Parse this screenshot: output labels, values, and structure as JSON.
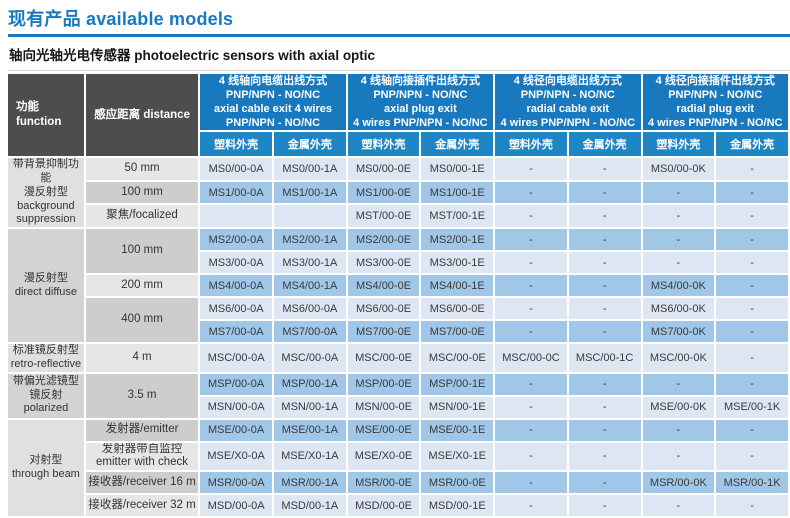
{
  "page": {
    "title": "现有产品 available models",
    "subtitle": "轴向光轴光电传感器 photoelectric sensors with axial  optic"
  },
  "colors": {
    "accent_blue": "#1879BE",
    "subheader_blue": "#1F86C6",
    "corner_gray": "#4D4D4D",
    "row_light": "#DDE6F2",
    "row_dark": "#A0C7E8"
  },
  "table": {
    "corner": {
      "function": [
        "功能",
        "function"
      ],
      "distance": [
        "感应距离 distance"
      ]
    },
    "groups": [
      {
        "lines": [
          "4 线轴向电缆出线方式",
          "PNP/NPN - NO/NC",
          "axial cable exit 4 wires",
          "PNP/NPN - NO/NC"
        ]
      },
      {
        "lines": [
          "4 线轴向接插件出线方式",
          "PNP/NPN - NO/NC",
          "axial plug exit",
          "4 wires PNP/NPN - NO/NC"
        ]
      },
      {
        "lines": [
          "4 线径向电缆出线方式",
          "PNP/NPN - NO/NC",
          "radial cable exit",
          "4 wires PNP/NPN - NO/NC"
        ]
      },
      {
        "lines": [
          "4 线径向接插件出线方式",
          "PNP/NPN - NO/NC",
          "radial plug exit",
          "4 wires PNP/NPN - NO/NC"
        ]
      }
    ],
    "housing_subheaders": [
      "塑料外壳",
      "金属外壳",
      "塑料外壳",
      "金属外壳",
      "塑料外壳",
      "金属外壳",
      "塑料外壳",
      "金属外壳"
    ],
    "sections": [
      {
        "function": {
          "lines": [
            "带背景抑制功能",
            "漫反射型",
            "background",
            "suppression"
          ],
          "shade": "L"
        },
        "rows": [
          {
            "dist": {
              "lines": [
                "50 mm"
              ],
              "span": 1,
              "shade": "L"
            },
            "tone": "L",
            "cells": [
              "MS0/00-0A",
              "MS0/00-1A",
              "MS0/00-0E",
              "MS0/00-1E",
              "-",
              "-",
              "MS0/00-0K",
              "-"
            ]
          },
          {
            "dist": {
              "lines": [
                "100 mm"
              ],
              "span": 1,
              "shade": "D"
            },
            "tone": "D",
            "cells": [
              "MS1/00-0A",
              "MS1/00-1A",
              "MS1/00-0E",
              "MS1/00-1E",
              "-",
              "-",
              "-",
              "-"
            ]
          },
          {
            "dist": {
              "lines": [
                "聚焦/focalized"
              ],
              "span": 1,
              "shade": "L"
            },
            "tone": "L",
            "cells": [
              "",
              "",
              "MST/00-0E",
              "MST/00-1E",
              "-",
              "-",
              "-",
              "-"
            ]
          }
        ]
      },
      {
        "function": {
          "lines": [
            "漫反射型",
            "direct diffuse"
          ],
          "shade": "D"
        },
        "rows": [
          {
            "dist": {
              "lines": [
                "100 mm"
              ],
              "span": 2,
              "shade": "D"
            },
            "tone": "D",
            "cells": [
              "MS2/00-0A",
              "MS2/00-1A",
              "MS2/00-0E",
              "MS2/00-1E",
              "-",
              "-",
              "-",
              "-"
            ]
          },
          {
            "tone": "L",
            "cells": [
              "MS3/00-0A",
              "MS3/00-1A",
              "MS3/00-0E",
              "MS3/00-1E",
              "-",
              "-",
              "-",
              "-"
            ]
          },
          {
            "dist": {
              "lines": [
                "200 mm"
              ],
              "span": 1,
              "shade": "L"
            },
            "tone": "D",
            "cells": [
              "MS4/00-0A",
              "MS4/00-1A",
              "MS4/00-0E",
              "MS4/00-1E",
              "-",
              "-",
              "MS4/00-0K",
              "-"
            ]
          },
          {
            "dist": {
              "lines": [
                "400 mm"
              ],
              "span": 2,
              "shade": "D"
            },
            "tone": "L",
            "cells": [
              "MS6/00-0A",
              "MS6/00-0A",
              "MS6/00-0E",
              "MS6/00-0E",
              "-",
              "-",
              "MS6/00-0K",
              "-"
            ]
          },
          {
            "tone": "D",
            "cells": [
              "MS7/00-0A",
              "MS7/00-0A",
              "MS7/00-0E",
              "MS7/00-0E",
              "-",
              "-",
              "MS7/00-0K",
              "-"
            ]
          }
        ]
      },
      {
        "function": {
          "lines": [
            "标准镜反射型",
            "retro-reflective"
          ],
          "shade": "L"
        },
        "rows": [
          {
            "dist": {
              "lines": [
                "4 m"
              ],
              "span": 1,
              "shade": "L"
            },
            "tone": "L",
            "cells": [
              "MSC/00-0A",
              "MSC/00-0A",
              "MSC/00-0E",
              "MSC/00-0E",
              "MSC/00-0C",
              "MSC/00-1C",
              "MSC/00-0K",
              "-"
            ]
          }
        ]
      },
      {
        "function": {
          "lines": [
            "带偏光滤镜型",
            "镜反射",
            "polarized"
          ],
          "shade": "D"
        },
        "rows": [
          {
            "dist": {
              "lines": [
                "3.5 m"
              ],
              "span": 2,
              "shade": "D"
            },
            "tone": "D",
            "cells": [
              "MSP/00-0A",
              "MSP/00-1A",
              "MSP/00-0E",
              "MSP/00-1E",
              "-",
              "-",
              "-",
              "-"
            ]
          },
          {
            "tone": "L",
            "cells": [
              "MSN/00-0A",
              "MSN/00-1A",
              "MSN/00-0E",
              "MSN/00-1E",
              "-",
              "-",
              "MSE/00-0K",
              "MSE/00-1K"
            ]
          }
        ]
      },
      {
        "function": {
          "lines": [
            "对射型",
            "through beam"
          ],
          "shade": "L"
        },
        "rows": [
          {
            "dist": {
              "lines": [
                "发射器/emitter"
              ],
              "span": 1,
              "shade": "D"
            },
            "tone": "D",
            "cells": [
              "MSE/00-0A",
              "MSE/00-1A",
              "MSE/00-0E",
              "MSE/00-1E",
              "-",
              "-",
              "-",
              "-"
            ]
          },
          {
            "dist": {
              "lines": [
                "发射器带自监控",
                "emitter with check"
              ],
              "span": 1,
              "shade": "L"
            },
            "tone": "L",
            "cells": [
              "MSE/X0-0A",
              "MSE/X0-1A",
              "MSE/X0-0E",
              "MSE/X0-1E",
              "-",
              "-",
              "-",
              "-"
            ]
          },
          {
            "dist": {
              "lines": [
                "接收器/receiver 16 m"
              ],
              "span": 1,
              "shade": "D"
            },
            "tone": "D",
            "cells": [
              "MSR/00-0A",
              "MSR/00-1A",
              "MSR/00-0E",
              "MSR/00-0E",
              "-",
              "-",
              "MSR/00-0K",
              "MSR/00-1K"
            ]
          },
          {
            "dist": {
              "lines": [
                "接收器/receiver 32 m"
              ],
              "span": 1,
              "shade": "L"
            },
            "tone": "L",
            "cells": [
              "MSD/00-0A",
              "MSD/00-1A",
              "MSD/00-0E",
              "MSD/00-1E",
              "-",
              "-",
              "-",
              "-"
            ]
          }
        ]
      }
    ]
  }
}
